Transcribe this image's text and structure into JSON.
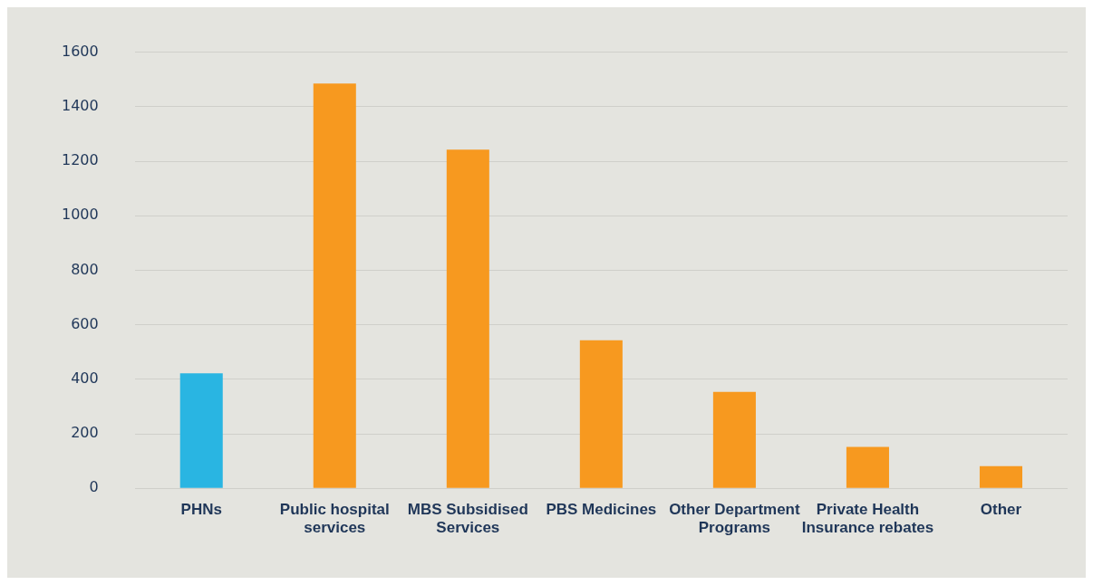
{
  "chart_data": {
    "type": "bar",
    "categories": [
      "PHNs",
      "Public hospital services",
      "MBS Subsidised Services",
      "PBS Medicines",
      "Other Department Programs",
      "Private Health Insurance rebates",
      "Other"
    ],
    "values": [
      422,
      1485,
      1242,
      543,
      354,
      152,
      81
    ],
    "colors": [
      "#29b5e2",
      "#f7991f",
      "#f7991f",
      "#f7991f",
      "#f7991f",
      "#f7991f",
      "#f7991f"
    ],
    "ylim": [
      0,
      1600
    ],
    "yticks": [
      0,
      200,
      400,
      600,
      800,
      1000,
      1200,
      1400,
      1600
    ],
    "grid": "y",
    "legend": false
  }
}
